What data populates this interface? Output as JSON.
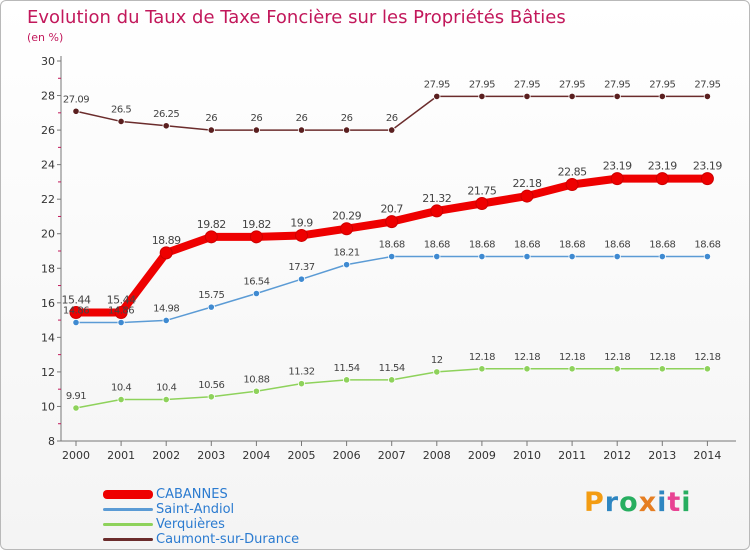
{
  "page": {
    "title": "Evolution du Taux de Taxe Foncière sur les Propriétés Bâties",
    "subtitle": "(en %)"
  },
  "logo": {
    "text": "Proxiti",
    "letters": [
      "P",
      "r",
      "o",
      "x",
      "i",
      "t",
      "i"
    ]
  },
  "chart_data": {
    "type": "line",
    "title": "Evolution du Taux de Taxe Foncière sur les Propriétés Bâties",
    "ylabel": "(en %)",
    "xlabel": "",
    "ylim": [
      8,
      30
    ],
    "yticks": [
      8,
      10,
      12,
      14,
      16,
      18,
      20,
      22,
      24,
      26,
      28,
      30
    ],
    "grid": false,
    "legend_position": "bottom-left",
    "x": [
      "2000",
      "2001",
      "2002",
      "2003",
      "2004",
      "2005",
      "2006",
      "2007",
      "2008",
      "2009",
      "2010",
      "2011",
      "2012",
      "2013",
      "2014"
    ],
    "series": [
      {
        "name": "CABANNES",
        "color": "#ee0000",
        "values": [
          15.44,
          15.44,
          18.89,
          19.82,
          19.82,
          19.9,
          20.29,
          20.7,
          21.32,
          21.75,
          22.18,
          22.85,
          23.19,
          23.19,
          23.19
        ],
        "labels": [
          "15.44",
          "15.44",
          "18.89",
          "19.82",
          "19.82",
          "19.9",
          "20.29",
          "20.7",
          "21.32",
          "21.75",
          "22.18",
          "22.85",
          "23.19",
          "23.19",
          "23.19"
        ]
      },
      {
        "name": "Saint-Andiol",
        "color": "#5b9bd5",
        "values": [
          14.86,
          14.86,
          14.98,
          15.75,
          16.54,
          17.37,
          18.21,
          18.68,
          18.68,
          18.68,
          18.68,
          18.68,
          18.68,
          18.68,
          18.68
        ],
        "labels": [
          "14.86",
          "14.86",
          "14.98",
          "15.75",
          "16.54",
          "17.37",
          "18.21",
          "18.68",
          "18.68",
          "18.68",
          "18.68",
          "18.68",
          "18.68",
          "18.68",
          "18.68"
        ]
      },
      {
        "name": "Verquières",
        "color": "#8ed25b",
        "values": [
          9.91,
          10.4,
          10.4,
          10.56,
          10.88,
          11.32,
          11.54,
          11.54,
          12,
          12.18,
          12.18,
          12.18,
          12.18,
          12.18,
          12.18
        ],
        "labels": [
          "9.91",
          "10.4",
          "10.4",
          "10.56",
          "10.88",
          "11.32",
          "11.54",
          "11.54",
          "12",
          "12.18",
          "12.18",
          "12.18",
          "12.18",
          "12.18",
          "12.18"
        ]
      },
      {
        "name": "Caumont-sur-Durance",
        "color": "#6b2c2c",
        "values": [
          27.09,
          26.5,
          26.25,
          26,
          26,
          26,
          26,
          26,
          27.95,
          27.95,
          27.95,
          27.95,
          27.95,
          27.95,
          27.95
        ],
        "labels": [
          "27.09",
          "26.5",
          "26.25",
          "26",
          "26",
          "26",
          "26",
          "26",
          "27.95",
          "27.95",
          "27.95",
          "27.95",
          "27.95",
          "27.95",
          "27.95"
        ]
      }
    ]
  }
}
